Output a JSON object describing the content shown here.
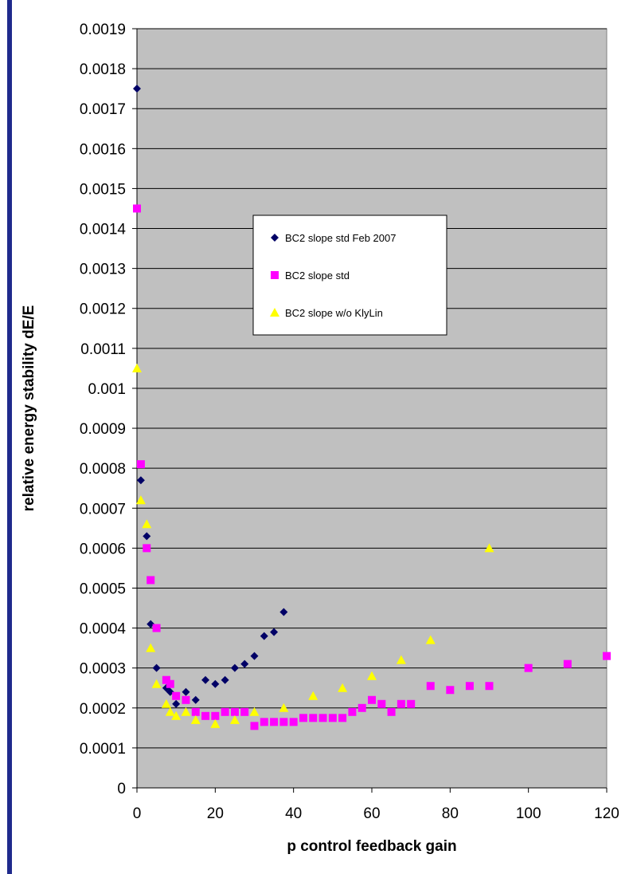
{
  "chart_data": {
    "type": "scatter",
    "title": "",
    "xlabel": "p control feedback gain",
    "ylabel": "relative energy stability dE/E",
    "xlim": [
      0,
      120
    ],
    "ylim": [
      0,
      0.0019
    ],
    "x_ticks": [
      "0",
      "20",
      "40",
      "60",
      "80",
      "100",
      "120"
    ],
    "y_ticks": [
      "0",
      "0.0001",
      "0.0002",
      "0.0003",
      "0.0004",
      "0.0005",
      "0.0006",
      "0.0007",
      "0.0008",
      "0.0009",
      "0.001",
      "0.0011",
      "0.0012",
      "0.0013",
      "0.0014",
      "0.0015",
      "0.0016",
      "0.0017",
      "0.0018",
      "0.0019"
    ],
    "grid": true,
    "legend_position": "upper-center",
    "plot_background": "#c0c0c0",
    "series": [
      {
        "name": "BC2 slope std Feb 2007",
        "color": "#000066",
        "marker": "diamond",
        "points": [
          [
            0,
            0.00175
          ],
          [
            1,
            0.00077
          ],
          [
            2.5,
            0.00063
          ],
          [
            3.5,
            0.00041
          ],
          [
            5,
            0.0003
          ],
          [
            7.5,
            0.00025
          ],
          [
            8.5,
            0.00024
          ],
          [
            10,
            0.00021
          ],
          [
            12.5,
            0.00024
          ],
          [
            15,
            0.00022
          ],
          [
            17.5,
            0.00027
          ],
          [
            20,
            0.00026
          ],
          [
            22.5,
            0.00027
          ],
          [
            25,
            0.0003
          ],
          [
            27.5,
            0.00031
          ],
          [
            30,
            0.00033
          ],
          [
            32.5,
            0.00038
          ],
          [
            35,
            0.00039
          ],
          [
            37.5,
            0.00044
          ]
        ]
      },
      {
        "name": "BC2 slope std",
        "color": "#ff00ff",
        "marker": "square",
        "points": [
          [
            0,
            0.00145
          ],
          [
            1,
            0.00081
          ],
          [
            2.5,
            0.0006
          ],
          [
            3.5,
            0.00052
          ],
          [
            5,
            0.0004
          ],
          [
            7.5,
            0.00027
          ],
          [
            8.5,
            0.00026
          ],
          [
            10,
            0.00023
          ],
          [
            12.5,
            0.00022
          ],
          [
            15,
            0.00019
          ],
          [
            17.5,
            0.00018
          ],
          [
            20,
            0.00018
          ],
          [
            22.5,
            0.00019
          ],
          [
            25,
            0.00019
          ],
          [
            27.5,
            0.00019
          ],
          [
            30,
            0.000155
          ],
          [
            32.5,
            0.000165
          ],
          [
            35,
            0.000165
          ],
          [
            37.5,
            0.000165
          ],
          [
            40,
            0.000165
          ],
          [
            42.5,
            0.000175
          ],
          [
            45,
            0.000175
          ],
          [
            47.5,
            0.000175
          ],
          [
            50,
            0.000175
          ],
          [
            52.5,
            0.000175
          ],
          [
            55,
            0.00019
          ],
          [
            57.5,
            0.0002
          ],
          [
            60,
            0.00022
          ],
          [
            62.5,
            0.00021
          ],
          [
            65,
            0.00019
          ],
          [
            67.5,
            0.00021
          ],
          [
            70,
            0.00021
          ],
          [
            75,
            0.000255
          ],
          [
            80,
            0.000245
          ],
          [
            85,
            0.000255
          ],
          [
            90,
            0.000255
          ],
          [
            100,
            0.0003
          ],
          [
            110,
            0.00031
          ],
          [
            120,
            0.00033
          ]
        ]
      },
      {
        "name": "BC2 slope w/o KlyLin",
        "color": "#ffff00",
        "marker": "triangle",
        "points": [
          [
            0,
            0.00105
          ],
          [
            1,
            0.00072
          ],
          [
            2.5,
            0.00066
          ],
          [
            3.5,
            0.00035
          ],
          [
            5,
            0.00026
          ],
          [
            7.5,
            0.00021
          ],
          [
            8.5,
            0.00019
          ],
          [
            10,
            0.00018
          ],
          [
            12.5,
            0.00019
          ],
          [
            15,
            0.00017
          ],
          [
            20,
            0.00016
          ],
          [
            25,
            0.00017
          ],
          [
            30,
            0.00019
          ],
          [
            37.5,
            0.0002
          ],
          [
            45,
            0.00023
          ],
          [
            52.5,
            0.00025
          ],
          [
            60,
            0.00028
          ],
          [
            67.5,
            0.00032
          ],
          [
            75,
            0.00037
          ],
          [
            90,
            0.0006
          ]
        ]
      }
    ]
  }
}
